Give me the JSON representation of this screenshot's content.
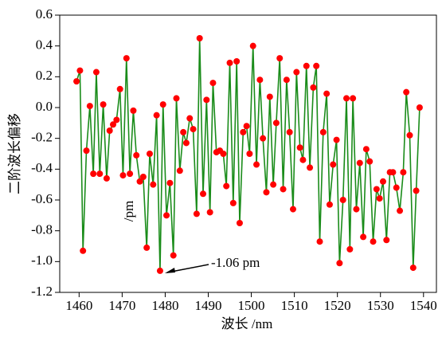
{
  "chart_data": {
    "type": "line",
    "x_label": "波长 /nm",
    "y_label": "二阶波长偏移",
    "annotations": [
      {
        "text": "-1.06 pm"
      },
      {
        "text": "/pm"
      }
    ],
    "xlim": [
      1455.5,
      1543
    ],
    "xticks": [
      1460,
      1470,
      1480,
      1490,
      1500,
      1510,
      1520,
      1530,
      1540
    ],
    "ylim": [
      -1.2,
      0.6
    ],
    "yticks": [
      -1.2,
      {
        "value": -1.0,
        "label": "-1.0"
      },
      -0.8,
      -0.6,
      -0.4,
      -0.2,
      {
        "value": 0,
        "label": "0.0"
      },
      0.2,
      0.4,
      0.6
    ],
    "series": [
      {
        "color": "#1a8c1a",
        "marker_color": "#ff0000",
        "x": [
          1459.4,
          1460.2,
          1460.9,
          1461.7,
          1462.5,
          1463.3,
          1464.0,
          1464.8,
          1465.6,
          1466.4,
          1467.1,
          1467.9,
          1468.7,
          1469.5,
          1470.2,
          1471.0,
          1471.8,
          1472.6,
          1473.3,
          1474.1,
          1474.9,
          1475.7,
          1476.4,
          1477.2,
          1478.0,
          1478.8,
          1479.5,
          1480.3,
          1481.1,
          1481.9,
          1482.6,
          1483.4,
          1484.2,
          1484.9,
          1485.7,
          1486.5,
          1487.3,
          1488.0,
          1488.8,
          1489.6,
          1490.4,
          1491.1,
          1491.9,
          1492.7,
          1493.5,
          1494.2,
          1495.0,
          1495.8,
          1496.6,
          1497.3,
          1498.1,
          1498.9,
          1499.6,
          1500.4,
          1501.2,
          1502.0,
          1502.7,
          1503.5,
          1504.3,
          1505.1,
          1505.8,
          1506.6,
          1507.4,
          1508.2,
          1508.9,
          1509.7,
          1510.5,
          1511.3,
          1512.0,
          1512.8,
          1513.6,
          1514.4,
          1515.1,
          1515.9,
          1516.7,
          1517.5,
          1518.2,
          1519.0,
          1519.8,
          1520.5,
          1521.3,
          1522.1,
          1522.9,
          1523.6,
          1524.4,
          1525.2,
          1526.0,
          1526.7,
          1527.5,
          1528.3,
          1529.1,
          1529.8,
          1530.6,
          1531.4,
          1532.2,
          1532.9,
          1533.7,
          1534.5,
          1535.3,
          1536.0,
          1536.8,
          1537.6,
          1538.3,
          1539.1
        ],
        "values": [
          0.17,
          0.24,
          -0.93,
          -0.28,
          0.01,
          -0.43,
          0.23,
          -0.43,
          0.02,
          -0.46,
          -0.15,
          -0.11,
          -0.08,
          0.12,
          -0.44,
          0.32,
          -0.43,
          -0.02,
          -0.31,
          -0.48,
          -0.45,
          -0.91,
          -0.3,
          -0.5,
          -0.05,
          -1.06,
          0.02,
          -0.7,
          -0.49,
          -0.96,
          0.06,
          -0.41,
          -0.16,
          -0.23,
          -0.07,
          -0.14,
          -0.69,
          0.45,
          -0.56,
          0.05,
          -0.68,
          0.16,
          -0.29,
          -0.28,
          -0.3,
          -0.51,
          0.29,
          -0.62,
          0.3,
          -0.75,
          -0.16,
          -0.12,
          -0.3,
          0.4,
          -0.37,
          0.18,
          -0.2,
          -0.55,
          0.07,
          -0.5,
          -0.1,
          0.32,
          -0.53,
          0.18,
          -0.16,
          -0.66,
          0.23,
          -0.26,
          -0.34,
          0.27,
          -0.39,
          0.13,
          0.27,
          -0.87,
          -0.16,
          0.09,
          -0.63,
          -0.37,
          -0.21,
          -1.01,
          -0.6,
          0.06,
          -0.92,
          0.06,
          -0.66,
          -0.36,
          -0.84,
          -0.27,
          -0.35,
          -0.87,
          -0.53,
          -0.59,
          -0.48,
          -0.86,
          -0.42,
          -0.42,
          -0.52,
          -0.67,
          -0.42,
          0.1,
          -0.18,
          -1.04,
          -0.54,
          0.0
        ]
      }
    ]
  }
}
